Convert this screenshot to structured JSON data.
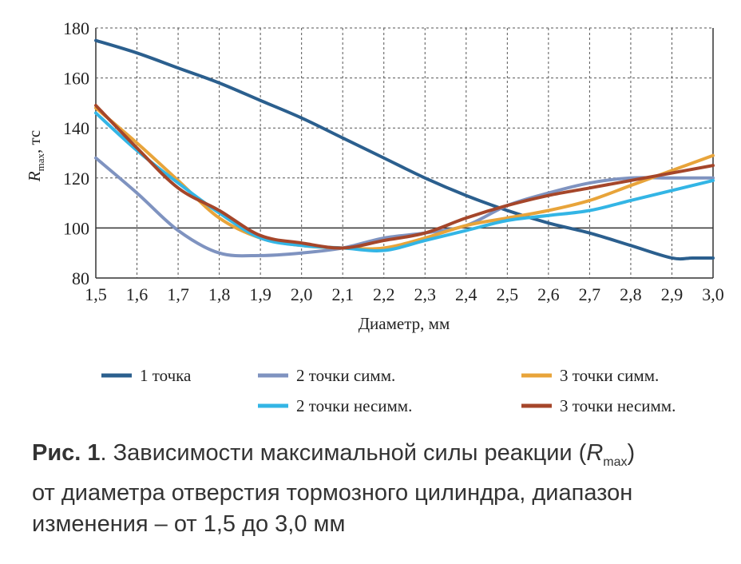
{
  "chart_data": {
    "type": "line",
    "xlabel": "Диаметр, мм",
    "ylabel_main": "R",
    "ylabel_sub": "max",
    "ylabel_rest": ", тс",
    "xlim": [
      1.5,
      3.0
    ],
    "ylim": [
      80,
      180
    ],
    "grid": true,
    "x_ticks": [
      1.5,
      1.6,
      1.7,
      1.8,
      1.9,
      2.0,
      2.1,
      2.2,
      2.3,
      2.4,
      2.5,
      2.6,
      2.7,
      2.8,
      2.9,
      3.0
    ],
    "x_tick_labels": [
      "1,5",
      "1,6",
      "1,7",
      "1,8",
      "1,9",
      "2,0",
      "2,1",
      "2,2",
      "2,3",
      "2,4",
      "2,5",
      "2,6",
      "2,7",
      "2,8",
      "2,9",
      "3,0"
    ],
    "y_ticks": [
      80,
      100,
      120,
      140,
      160,
      180
    ],
    "y_tick_labels": [
      "80",
      "100",
      "120",
      "140",
      "160",
      "180"
    ],
    "legend_position": "bottom",
    "series": [
      {
        "name": "1 точка",
        "color": "#2b5f8e",
        "x": [
          1.5,
          1.6,
          1.7,
          1.8,
          1.9,
          2.0,
          2.1,
          2.2,
          2.3,
          2.4,
          2.5,
          2.6,
          2.7,
          2.8,
          2.9,
          2.95,
          3.0
        ],
        "y": [
          175,
          170,
          164,
          158,
          151,
          144,
          136,
          128,
          120,
          113,
          107,
          102,
          98,
          93,
          88,
          88,
          88
        ]
      },
      {
        "name": "2 точки симм.",
        "color": "#7f93c0",
        "x": [
          1.5,
          1.6,
          1.7,
          1.8,
          1.9,
          2.0,
          2.1,
          2.2,
          2.3,
          2.4,
          2.5,
          2.6,
          2.7,
          2.8,
          2.9,
          3.0
        ],
        "y": [
          128,
          114,
          99,
          90,
          89,
          90,
          92,
          96,
          98,
          101,
          109,
          114,
          118,
          120,
          120,
          120
        ]
      },
      {
        "name": "3 точки симм.",
        "color": "#e8a43a",
        "x": [
          1.5,
          1.6,
          1.7,
          1.8,
          1.9,
          2.0,
          2.1,
          2.2,
          2.3,
          2.4,
          2.5,
          2.6,
          2.7,
          2.8,
          2.9,
          3.0
        ],
        "y": [
          148,
          134,
          119,
          104,
          96,
          93,
          92,
          92,
          96,
          101,
          104,
          107,
          111,
          117,
          123,
          129
        ]
      },
      {
        "name": "2 точки несимм.",
        "color": "#33b5e5",
        "x": [
          1.5,
          1.6,
          1.7,
          1.8,
          1.9,
          2.0,
          2.1,
          2.2,
          2.3,
          2.4,
          2.5,
          2.6,
          2.7,
          2.8,
          2.9,
          3.0
        ],
        "y": [
          146,
          131,
          118,
          106,
          96,
          93,
          92,
          91,
          95,
          99,
          103,
          105,
          107,
          111,
          115,
          119
        ]
      },
      {
        "name": "3 точки несимм.",
        "color": "#a5462a",
        "x": [
          1.5,
          1.6,
          1.7,
          1.8,
          1.9,
          2.0,
          2.1,
          2.2,
          2.3,
          2.4,
          2.5,
          2.6,
          2.7,
          2.8,
          2.9,
          3.0
        ],
        "y": [
          149,
          132,
          116,
          107,
          97,
          94,
          92,
          95,
          98,
          104,
          109,
          113,
          116,
          119,
          122,
          125
        ]
      }
    ]
  },
  "caption": {
    "fig_label": "Рис. 1",
    "text_a": ". Зависимости максимальной силы реакции (",
    "r": "R",
    "r_sub": "max",
    "text_b": ")",
    "line2": "от диаметра отверстия тормозного цилиндра, диапазон",
    "line3": "изменения – от 1,5 до 3,0 мм"
  }
}
